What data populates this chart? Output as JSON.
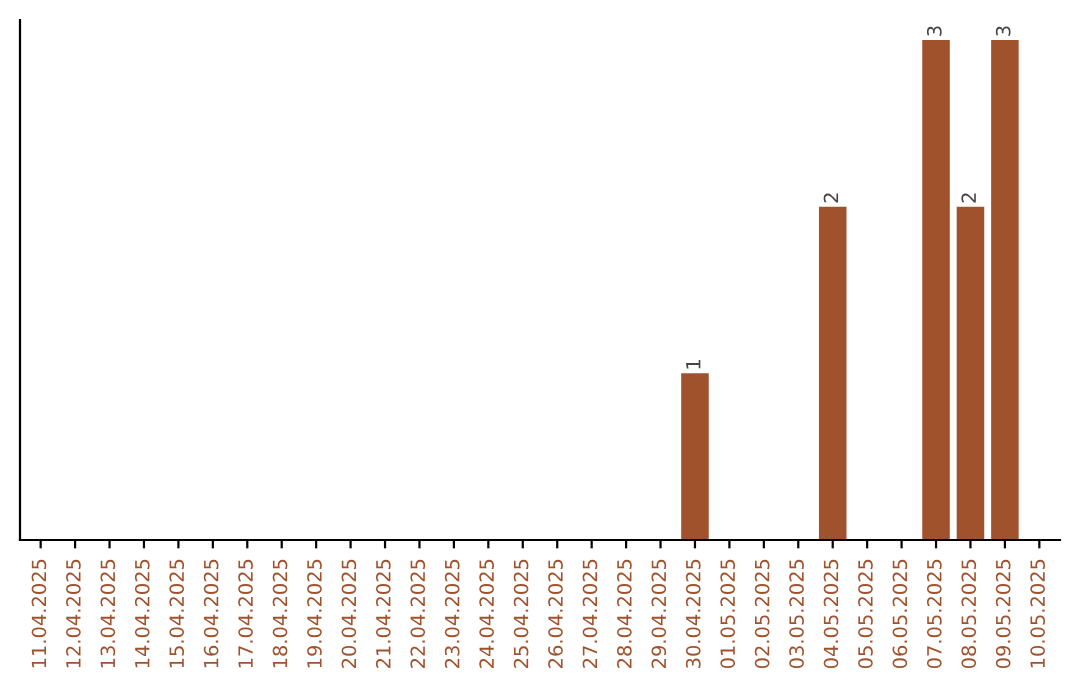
{
  "chart_data": {
    "type": "bar",
    "categories": [
      "11.04.2025",
      "12.04.2025",
      "13.04.2025",
      "14.04.2025",
      "15.04.2025",
      "16.04.2025",
      "17.04.2025",
      "18.04.2025",
      "19.04.2025",
      "20.04.2025",
      "21.04.2025",
      "22.04.2025",
      "23.04.2025",
      "24.04.2025",
      "25.04.2025",
      "26.04.2025",
      "27.04.2025",
      "28.04.2025",
      "29.04.2025",
      "30.04.2025",
      "01.05.2025",
      "02.05.2025",
      "03.05.2025",
      "04.05.2025",
      "05.05.2025",
      "06.05.2025",
      "07.05.2025",
      "08.05.2025",
      "09.05.2025",
      "10.05.2025"
    ],
    "values": [
      null,
      null,
      null,
      null,
      null,
      null,
      null,
      null,
      null,
      null,
      null,
      null,
      null,
      null,
      null,
      null,
      null,
      null,
      null,
      1,
      null,
      null,
      null,
      2,
      null,
      null,
      3,
      2,
      3,
      null
    ],
    "color": "#a0522d",
    "data_labels": true,
    "tick_labels": "x",
    "grid": false
  }
}
